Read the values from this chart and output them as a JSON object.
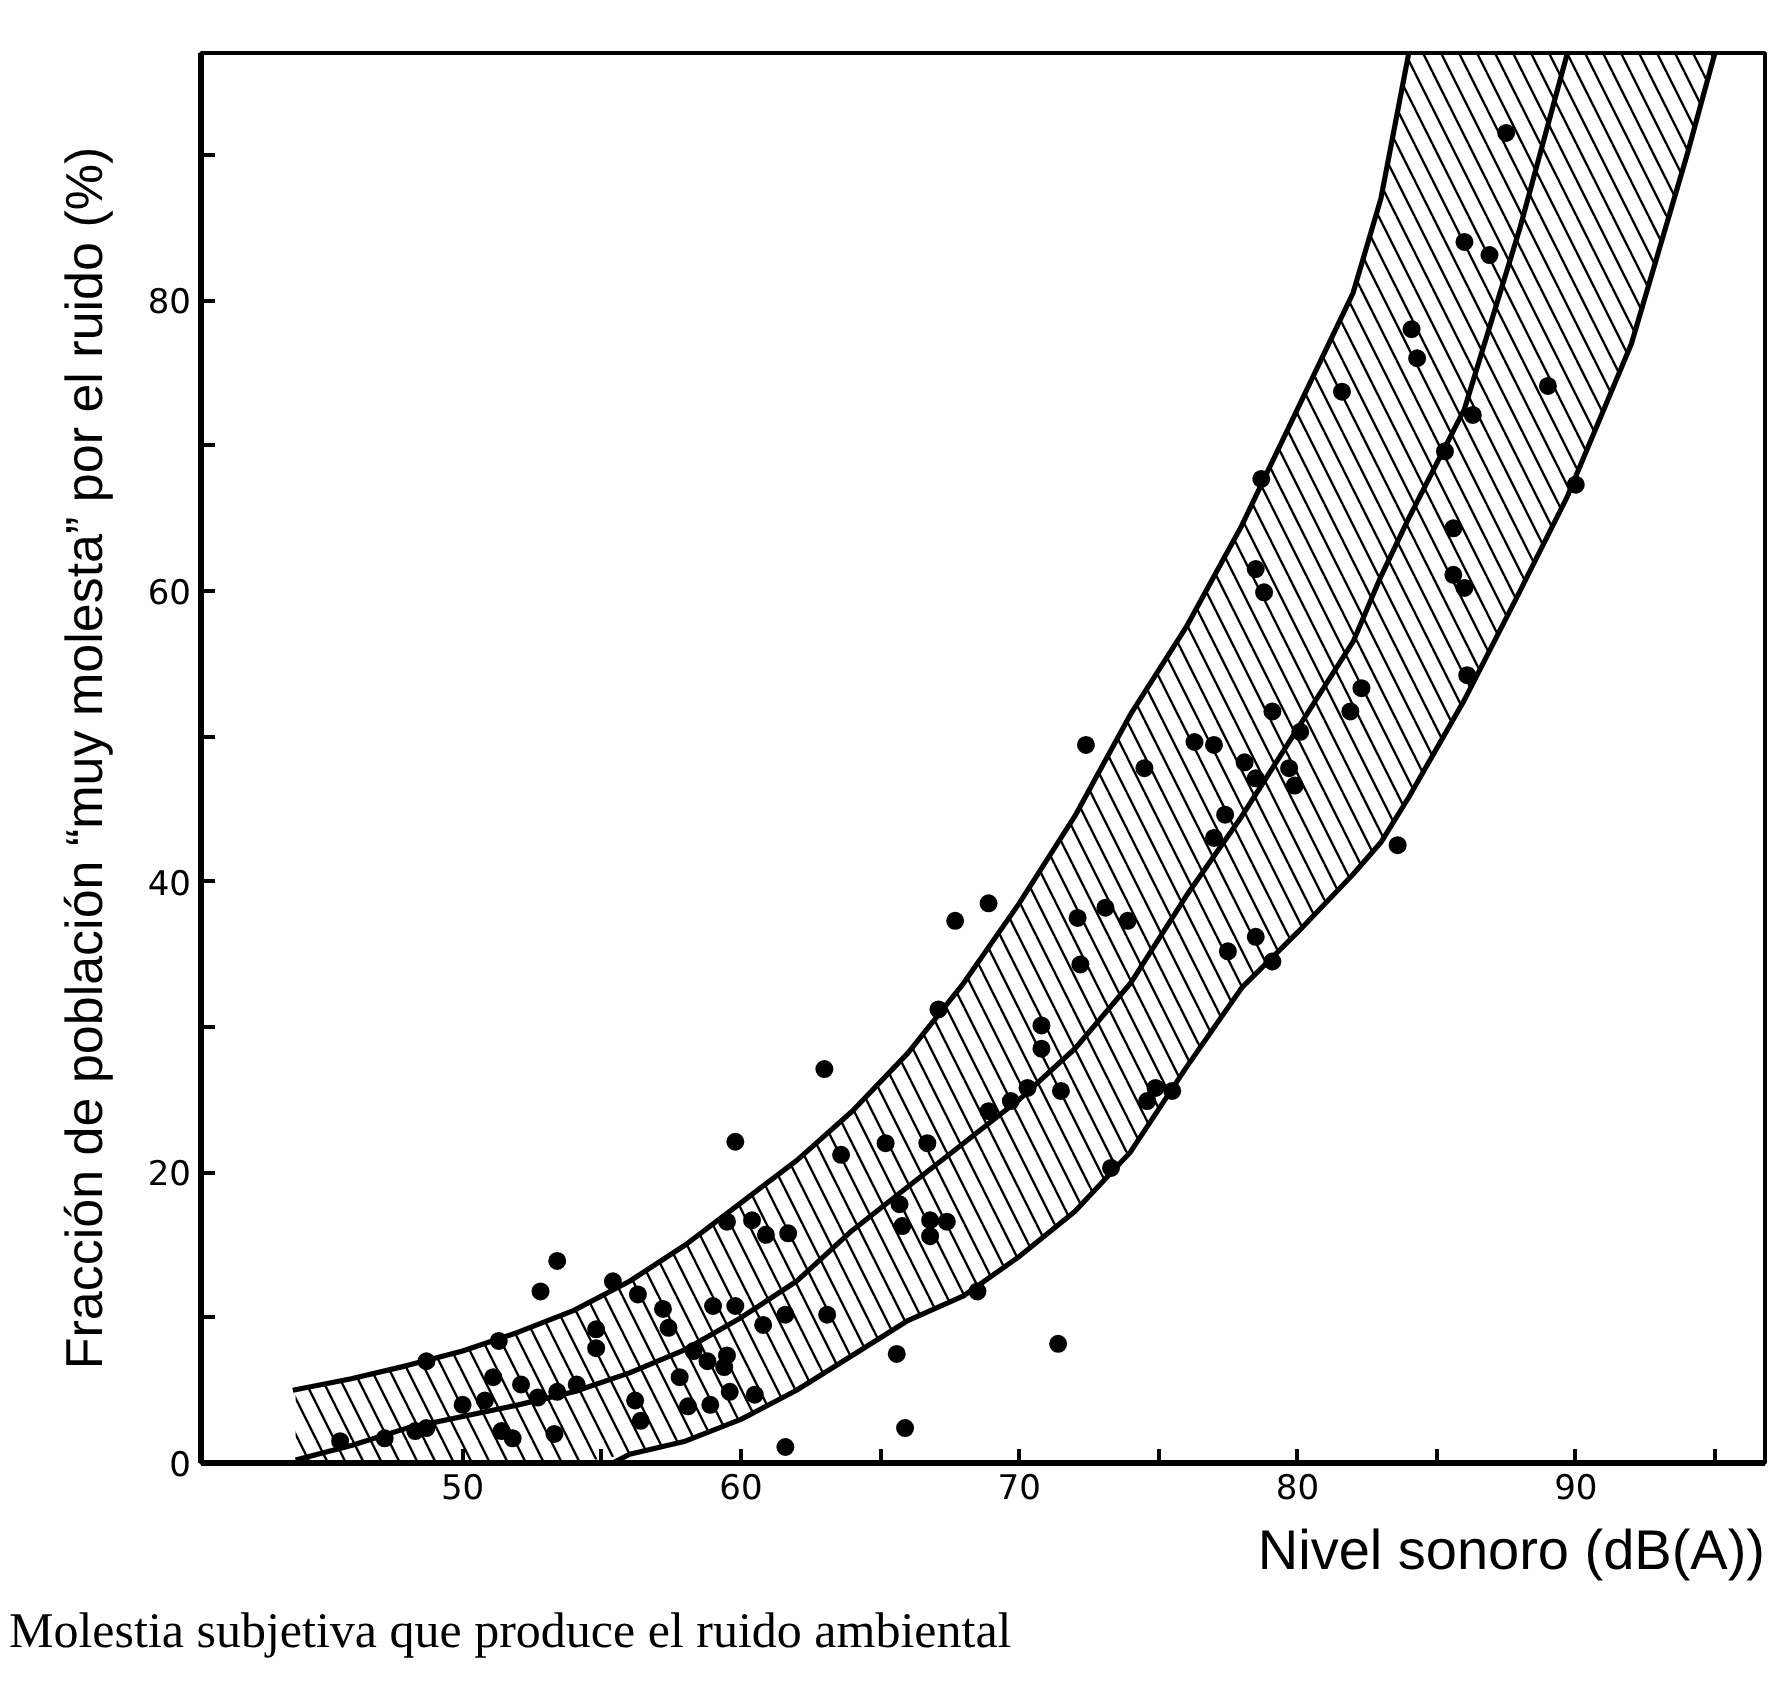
{
  "chart_data": {
    "type": "line",
    "xlabel": "Nivel sonoro (dB(A))",
    "ylabel": "Fracción de población “muy molesta” por el ruido (%)",
    "annotations": [
      "Molestia subjetiva que produce el ruido ambiental"
    ],
    "xlim": [
      40.6,
      96.8
    ],
    "ylim": [
      0,
      97
    ],
    "xticks": [
      50,
      {
        "value": 55,
        "label": null
      },
      60,
      {
        "value": 65,
        "label": null
      },
      70,
      {
        "value": 75,
        "label": null
      },
      80,
      {
        "value": 85,
        "label": null
      },
      90,
      {
        "value": 95,
        "label": null
      }
    ],
    "yticks": [
      0,
      {
        "value": 10,
        "label": null
      },
      20,
      {
        "value": 30,
        "label": null
      },
      40,
      {
        "value": 50,
        "label": null
      },
      60,
      {
        "value": 70,
        "label": null
      },
      80,
      {
        "value": 90,
        "label": null
      }
    ],
    "series": [
      {
        "color": "#000000",
        "x": [
          44,
          46,
          48,
          50,
          52,
          54,
          56,
          58,
          60,
          62,
          64,
          66,
          68,
          70,
          72,
          74,
          76,
          78,
          80,
          82,
          83,
          84,
          86,
          88,
          89.7,
          92,
          94,
          95
        ],
        "values": [
          0.2,
          1.2,
          2.4,
          3.2,
          4.0,
          4.9,
          6.2,
          7.8,
          10.0,
          12.5,
          16.0,
          19.0,
          22.0,
          25.0,
          28.5,
          33.0,
          39.0,
          44.5,
          50.5,
          56.5,
          61.0,
          65.0,
          72.5,
          85.0,
          97,
          null,
          null,
          null
        ],
        "lower": [
          0,
          0,
          0,
          0,
          0,
          0,
          0.6,
          1.5,
          3.0,
          5.0,
          7.4,
          9.8,
          11.5,
          14.2,
          17.3,
          21.4,
          27.2,
          32.7,
          36.5,
          40.5,
          42.7,
          45.8,
          52.5,
          60.0,
          66.5,
          77.0,
          90.0,
          97
        ],
        "upper": [
          5.0,
          5.8,
          6.7,
          7.7,
          9.0,
          10.5,
          12.5,
          15.0,
          17.9,
          20.8,
          24.2,
          28.2,
          33.0,
          38.5,
          44.5,
          51.5,
          57.5,
          64.5,
          72.5,
          80.5,
          87.0,
          97,
          97,
          97,
          97,
          97,
          97,
          97
        ]
      },
      {
        "color": "#000000",
        "x": [
          43.9,
          46,
          48,
          50,
          52,
          54,
          56,
          58,
          60,
          62,
          64,
          66,
          68,
          70,
          72,
          74,
          76,
          78,
          80,
          82,
          83,
          84
        ],
        "values": [
          5.0,
          5.8,
          6.7,
          7.7,
          9.0,
          10.5,
          12.5,
          15.0,
          17.9,
          20.8,
          24.2,
          28.2,
          33.0,
          38.5,
          44.5,
          51.5,
          57.5,
          64.5,
          72.5,
          80.5,
          87.0,
          97
        ]
      },
      {
        "color": "#000000",
        "x": [
          55.4,
          56,
          58,
          60,
          62,
          64,
          66,
          68,
          70,
          72,
          74,
          76,
          78,
          80,
          82,
          83,
          84,
          86,
          88,
          89.7,
          92,
          94,
          95
        ],
        "values": [
          0,
          0.6,
          1.5,
          3.0,
          5.0,
          7.4,
          9.8,
          11.5,
          14.2,
          17.3,
          21.4,
          27.2,
          32.7,
          36.5,
          40.5,
          42.7,
          45.8,
          52.5,
          60.0,
          66.5,
          77.0,
          90.0,
          97
        ]
      },
      {
        "type": "scatter",
        "marker": "circle",
        "color": "#000000",
        "x": [
          67.7,
          67.1,
          63.0,
          59.8,
          63.6,
          65.2,
          66.7,
          53.4,
          52.8,
          59.5,
          60.4,
          60.9,
          61.7,
          65.7,
          65.8,
          66.8,
          67.4,
          66.8,
          55.4,
          56.3,
          57.2,
          57.4,
          54.8,
          54.8,
          51.3,
          48.7,
          59.0,
          59.8,
          60.8,
          61.6,
          63.1,
          58.8,
          59.4,
          59.5,
          58.3,
          57.8,
          58.1,
          58.9,
          59.6,
          60.5,
          56.2,
          56.4,
          65.6,
          65.9,
          61.6,
          50.0,
          50.8,
          51.1,
          52.1,
          52.7,
          53.4,
          54.1,
          48.7,
          48.3,
          45.6,
          47.2,
          51.4,
          53.3,
          51.8,
          68.9,
          72.1,
          73.1,
          73.9,
          72.2,
          77.5,
          78.5,
          79.1,
          77.0,
          77.4,
          83.6,
          70.8,
          70.8,
          70.3,
          69.7,
          71.5,
          68.9,
          74.9,
          75.5,
          74.6,
          73.3,
          68.5,
          71.4,
          87.5,
          86.0,
          86.9,
          84.1,
          84.3,
          81.6,
          89.0,
          86.3,
          85.3,
          90.0,
          78.7,
          78.5,
          78.8,
          85.6,
          85.6,
          86.0,
          86.1,
          82.3,
          81.9,
          79.1,
          76.3,
          77.0,
          78.1,
          80.1,
          72.4,
          74.5,
          78.5,
          79.7,
          79.9
        ],
        "values": [
          37.3,
          31.2,
          27.1,
          22.1,
          21.2,
          22.0,
          22.0,
          13.9,
          11.8,
          16.6,
          16.7,
          15.7,
          15.8,
          17.8,
          16.3,
          16.7,
          16.6,
          15.6,
          12.5,
          11.6,
          10.6,
          9.3,
          9.2,
          7.9,
          8.4,
          7.0,
          10.8,
          10.8,
          9.5,
          10.2,
          10.2,
          7.0,
          6.6,
          7.4,
          7.7,
          5.9,
          3.9,
          4.0,
          4.9,
          4.7,
          4.3,
          2.9,
          7.5,
          2.4,
          1.1,
          4.0,
          4.3,
          5.9,
          5.4,
          4.5,
          4.9,
          5.4,
          2.4,
          2.2,
          1.5,
          1.7,
          2.2,
          2.0,
          1.7,
          38.5,
          37.5,
          38.2,
          37.3,
          34.3,
          35.2,
          36.2,
          34.5,
          43.0,
          44.6,
          42.5,
          30.1,
          28.5,
          25.8,
          24.9,
          25.6,
          24.2,
          25.8,
          25.6,
          24.9,
          20.3,
          11.8,
          8.2,
          91.5,
          84.0,
          83.1,
          78.0,
          76.0,
          73.7,
          74.1,
          72.1,
          69.6,
          67.3,
          67.7,
          61.5,
          59.9,
          64.3,
          61.1,
          60.2,
          54.2,
          53.3,
          51.7,
          51.7,
          49.6,
          49.4,
          48.2,
          50.3,
          49.4,
          47.8,
          47.1,
          47.8,
          46.6
        ]
      }
    ]
  }
}
